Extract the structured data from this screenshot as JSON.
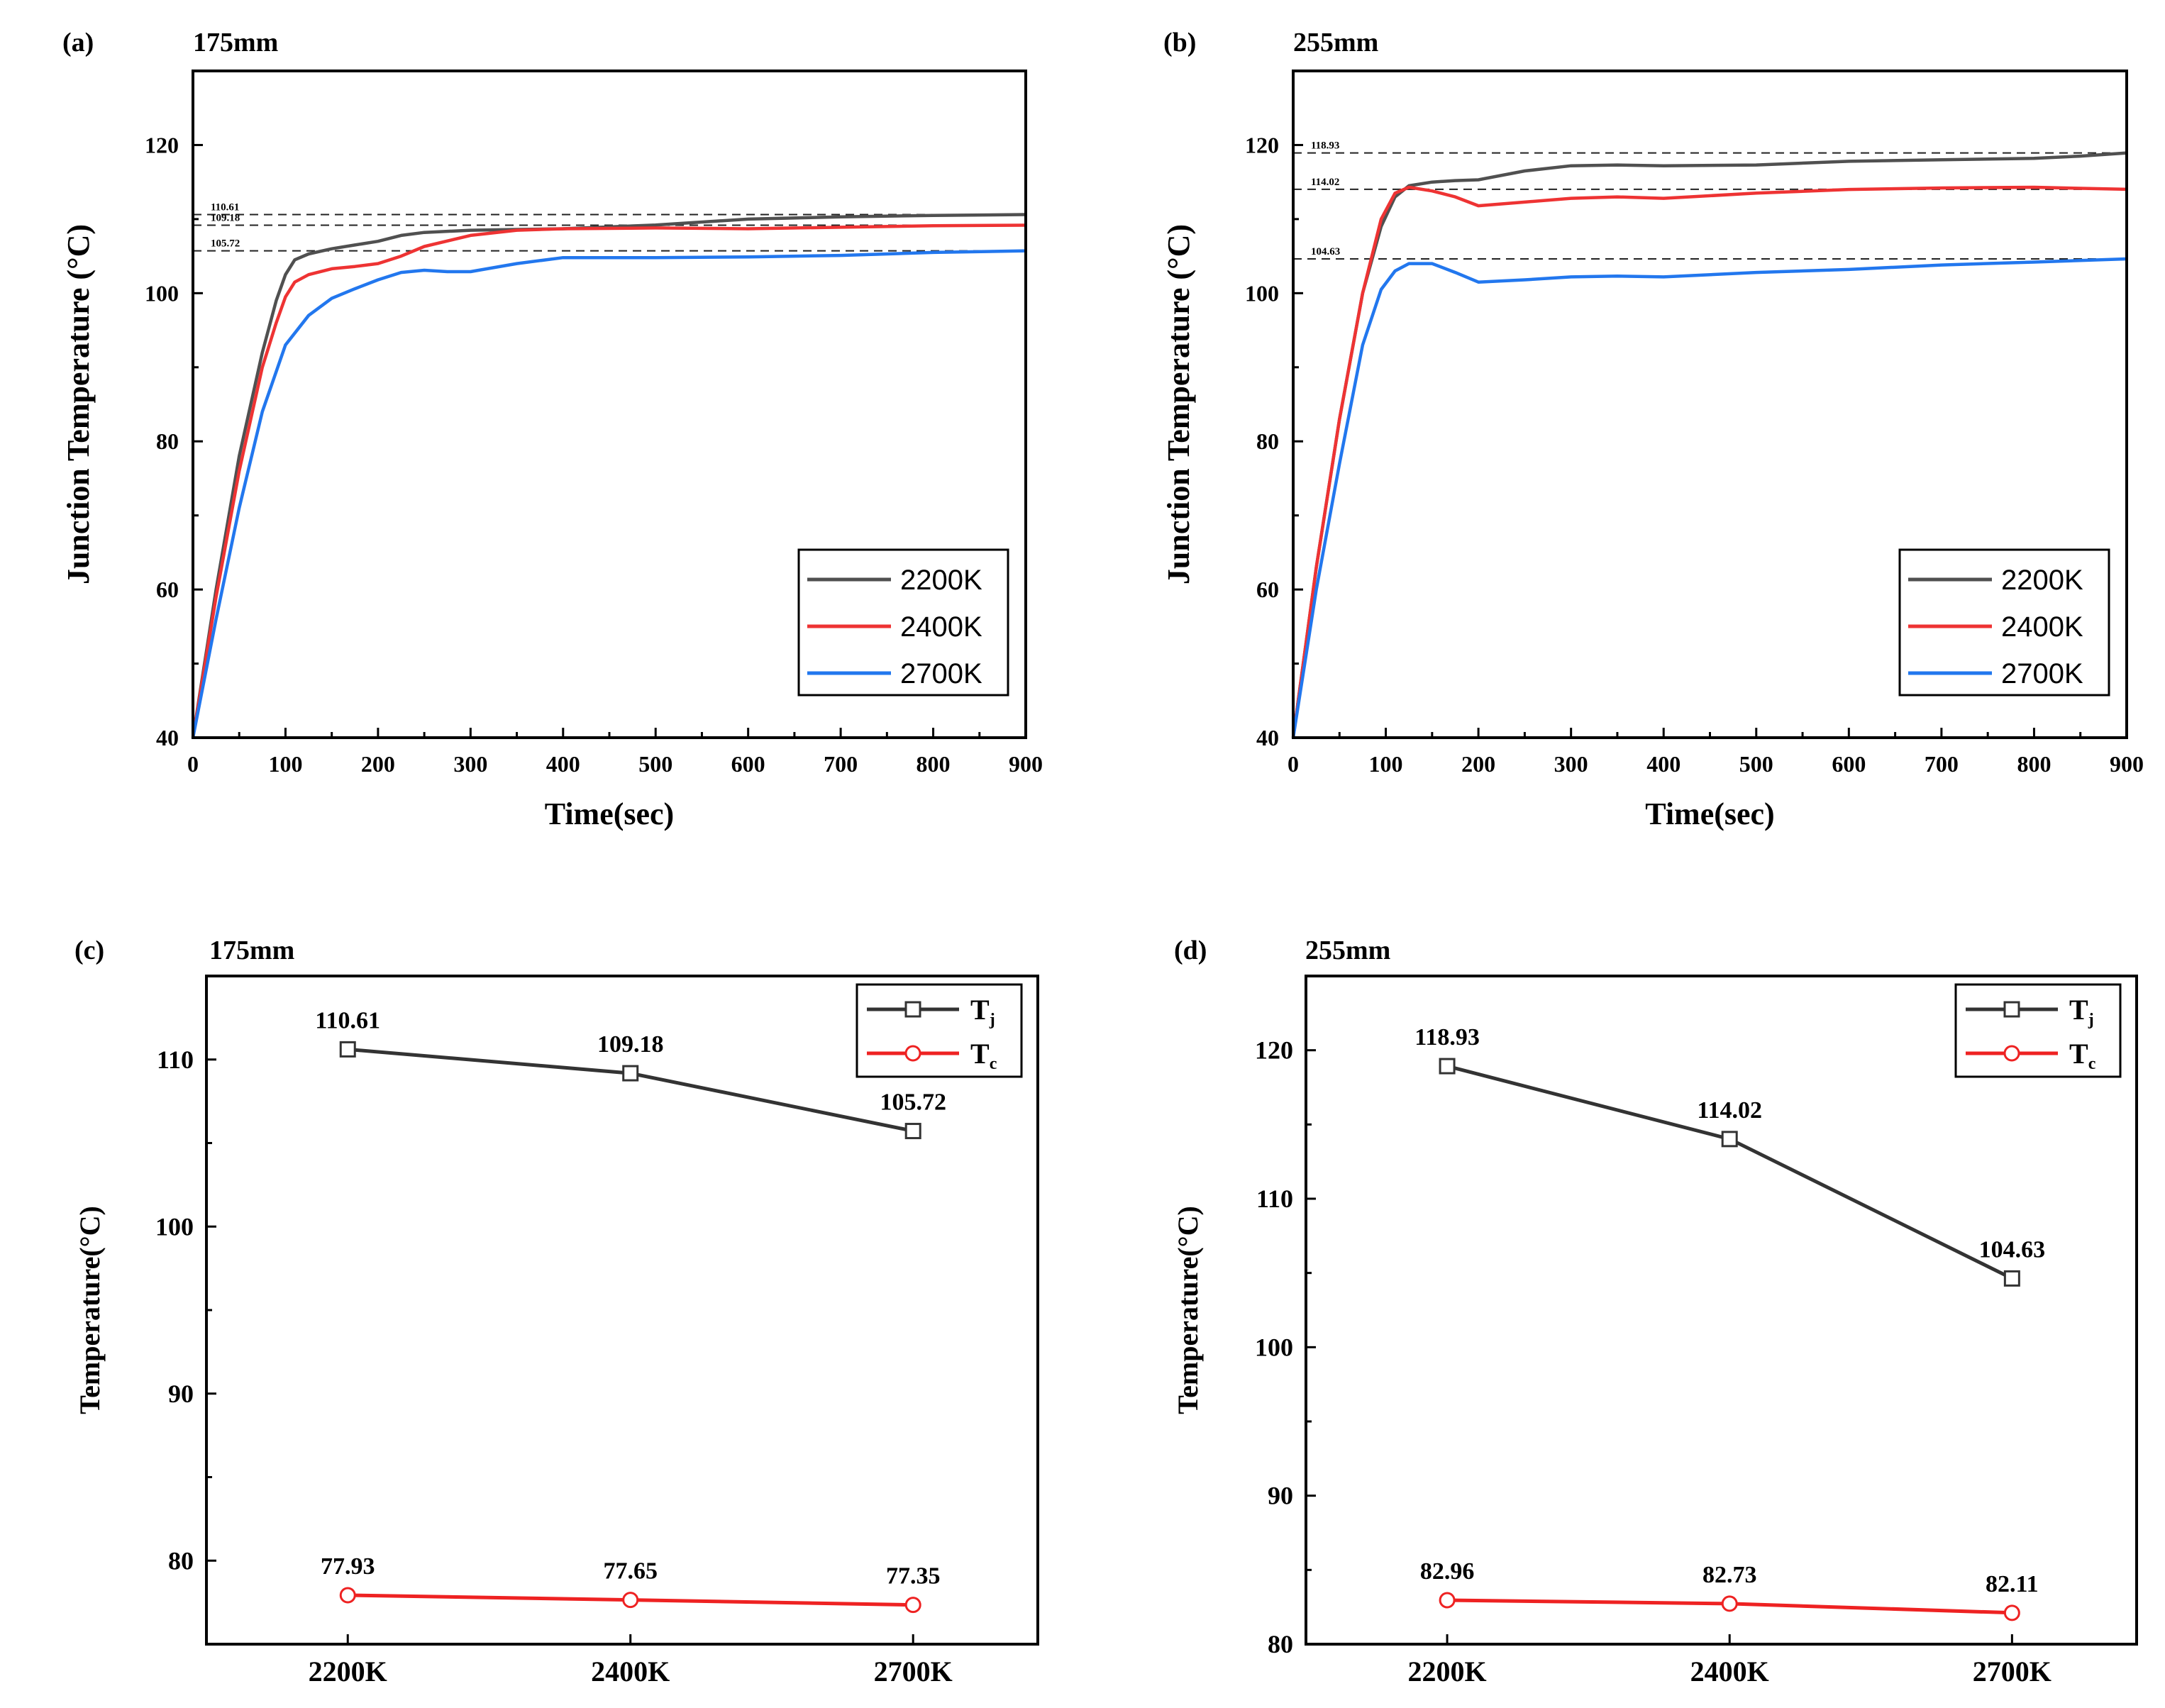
{
  "chart_data": [
    {
      "id": "a",
      "type": "line",
      "panel_label": "(a)",
      "title": "175mm",
      "xlabel": "Time(sec)",
      "ylabel": "Junction Temperature (°C)",
      "xlim": [
        0,
        900
      ],
      "ylim": [
        40,
        130
      ],
      "xticks": [
        0,
        100,
        200,
        300,
        400,
        500,
        600,
        700,
        800,
        900
      ],
      "yticks": [
        40,
        60,
        80,
        100,
        120
      ],
      "legend_position": "bottom-right",
      "reference_lines": [
        {
          "value": 110.61,
          "label": "110.61"
        },
        {
          "value": 109.18,
          "label": "109.18"
        },
        {
          "value": 105.72,
          "label": "105.72"
        }
      ],
      "series": [
        {
          "name": "2200K",
          "color": "#505050",
          "x": [
            0,
            25,
            50,
            75,
            90,
            100,
            110,
            125,
            150,
            175,
            200,
            225,
            250,
            300,
            350,
            400,
            500,
            600,
            700,
            800,
            900
          ],
          "y": [
            40,
            60,
            78,
            92,
            99,
            102.5,
            104.5,
            105.3,
            106,
            106.5,
            107,
            107.8,
            108.2,
            108.5,
            108.6,
            108.7,
            109.2,
            110,
            110.3,
            110.5,
            110.61
          ]
        },
        {
          "name": "2400K",
          "color": "#ee3333",
          "x": [
            0,
            25,
            50,
            75,
            90,
            100,
            110,
            125,
            150,
            175,
            200,
            225,
            250,
            300,
            350,
            400,
            500,
            600,
            700,
            800,
            900
          ],
          "y": [
            40,
            59,
            76,
            90,
            96,
            99.5,
            101.5,
            102.5,
            103.3,
            103.6,
            104,
            105,
            106.3,
            107.8,
            108.5,
            108.7,
            108.8,
            108.7,
            108.9,
            109.1,
            109.18
          ]
        },
        {
          "name": "2700K",
          "color": "#2277ee",
          "x": [
            0,
            25,
            50,
            75,
            100,
            125,
            150,
            175,
            200,
            225,
            250,
            275,
            300,
            350,
            400,
            500,
            600,
            700,
            800,
            900
          ],
          "y": [
            40,
            56,
            71,
            84,
            93,
            97,
            99.3,
            100.6,
            101.8,
            102.8,
            103.1,
            102.9,
            102.9,
            104,
            104.8,
            104.8,
            104.9,
            105.1,
            105.5,
            105.72
          ]
        }
      ]
    },
    {
      "id": "b",
      "type": "line",
      "panel_label": "(b)",
      "title": "255mm",
      "xlabel": "Time(sec)",
      "ylabel": "Junction Temperature (°C)",
      "xlim": [
        0,
        900
      ],
      "ylim": [
        40,
        130
      ],
      "xticks": [
        0,
        100,
        200,
        300,
        400,
        500,
        600,
        700,
        800,
        900
      ],
      "yticks": [
        40,
        60,
        80,
        100,
        120
      ],
      "legend_position": "bottom-right",
      "reference_lines": [
        {
          "value": 118.93,
          "label": "118.93"
        },
        {
          "value": 114.02,
          "label": "114.02"
        },
        {
          "value": 104.63,
          "label": "104.63"
        }
      ],
      "series": [
        {
          "name": "2200K",
          "color": "#505050",
          "x": [
            0,
            25,
            50,
            75,
            95,
            110,
            125,
            150,
            175,
            200,
            250,
            300,
            350,
            400,
            500,
            600,
            700,
            800,
            850,
            900
          ],
          "y": [
            40,
            63,
            83,
            100,
            109,
            113,
            114.5,
            115,
            115.2,
            115.3,
            116.5,
            117.2,
            117.3,
            117.2,
            117.3,
            117.8,
            118,
            118.2,
            118.5,
            118.93
          ]
        },
        {
          "name": "2400K",
          "color": "#ee3333",
          "x": [
            0,
            25,
            50,
            75,
            95,
            110,
            125,
            150,
            175,
            200,
            250,
            300,
            350,
            400,
            500,
            600,
            700,
            800,
            900
          ],
          "y": [
            40,
            63,
            83,
            100,
            110,
            113.5,
            114.3,
            113.8,
            113,
            111.8,
            112.3,
            112.8,
            113,
            112.8,
            113.5,
            114,
            114.2,
            114.3,
            114.02
          ]
        },
        {
          "name": "2700K",
          "color": "#2277ee",
          "x": [
            0,
            25,
            50,
            75,
            95,
            110,
            125,
            150,
            175,
            200,
            250,
            300,
            350,
            400,
            500,
            600,
            700,
            800,
            900
          ],
          "y": [
            40,
            60,
            77,
            93,
            100.5,
            103,
            104,
            104,
            102.8,
            101.5,
            101.8,
            102.2,
            102.3,
            102.2,
            102.8,
            103.2,
            103.8,
            104.2,
            104.63
          ]
        }
      ]
    },
    {
      "id": "c",
      "type": "line",
      "panel_label": "(c)",
      "title": "175mm",
      "xlabel": "",
      "ylabel": "Temperature(°C)",
      "categories": [
        "2200K",
        "2400K",
        "2700K"
      ],
      "ylim": [
        75,
        115
      ],
      "yticks": [
        80,
        90,
        100,
        110
      ],
      "legend_position": "top-right",
      "series": [
        {
          "name": "T",
          "sub": "j",
          "color": "#333333",
          "marker": "square",
          "values": [
            110.61,
            109.18,
            105.72
          ],
          "labels": [
            "110.61",
            "109.18",
            "105.72"
          ]
        },
        {
          "name": "T",
          "sub": "c",
          "color": "#ee2222",
          "marker": "circle",
          "values": [
            77.93,
            77.65,
            77.35
          ],
          "labels": [
            "77.93",
            "77.65",
            "77.35"
          ]
        }
      ]
    },
    {
      "id": "d",
      "type": "line",
      "panel_label": "(d)",
      "title": "255mm",
      "xlabel": "",
      "ylabel": "Temperature(°C)",
      "categories": [
        "2200K",
        "2400K",
        "2700K"
      ],
      "ylim": [
        80,
        125
      ],
      "yticks": [
        80,
        90,
        100,
        110,
        120
      ],
      "legend_position": "top-right",
      "series": [
        {
          "name": "T",
          "sub": "j",
          "color": "#333333",
          "marker": "square",
          "values": [
            118.93,
            114.02,
            104.63
          ],
          "labels": [
            "118.93",
            "114.02",
            "104.63"
          ]
        },
        {
          "name": "T",
          "sub": "c",
          "color": "#ee2222",
          "marker": "circle",
          "values": [
            82.96,
            82.73,
            82.11
          ],
          "labels": [
            "82.96",
            "82.73",
            "82.11"
          ]
        }
      ]
    }
  ]
}
